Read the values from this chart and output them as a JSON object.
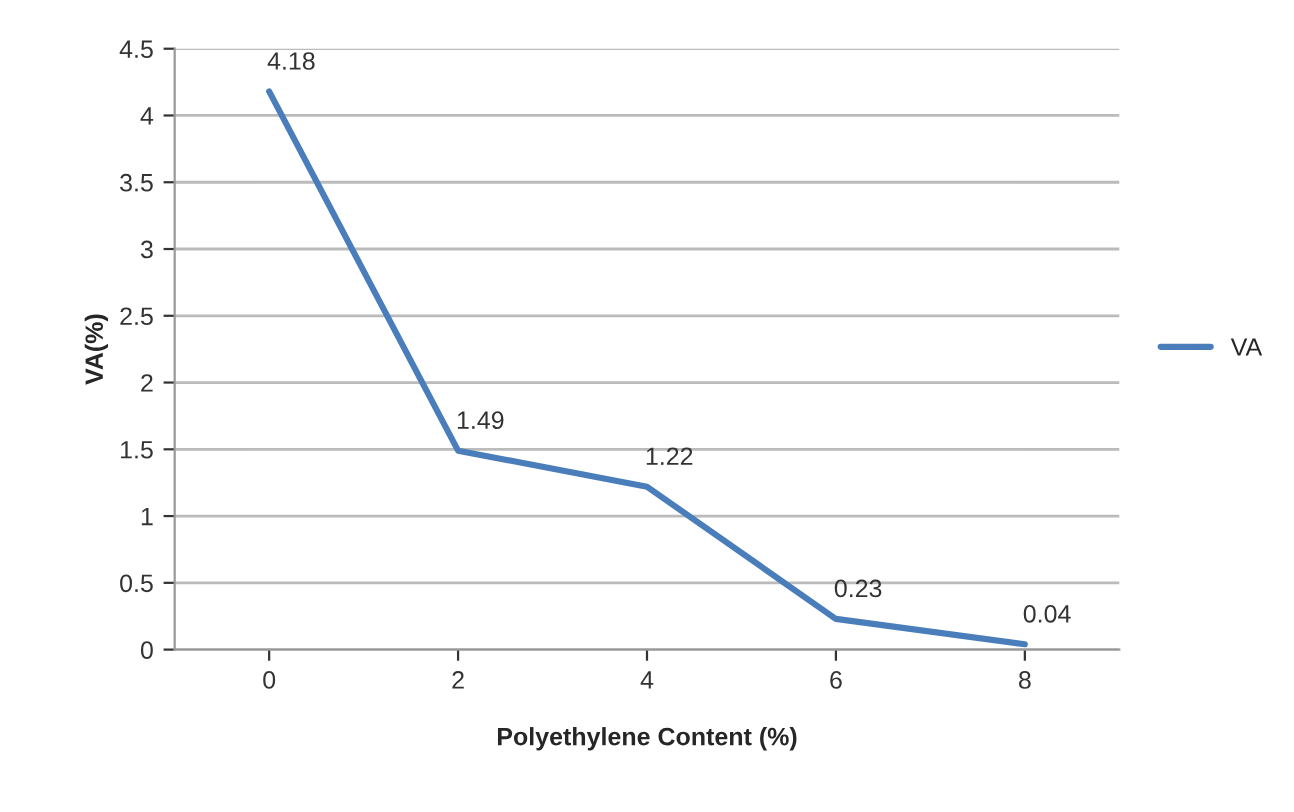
{
  "chart_data": {
    "type": "line",
    "xlabel": "Polyethylene Content (%)",
    "ylabel": "VA(%)",
    "categories": [
      "0",
      "2",
      "4",
      "6",
      "8"
    ],
    "series": [
      {
        "name": "VA",
        "color": "#4a7ebb",
        "values": [
          4.18,
          1.49,
          1.22,
          0.23,
          0.04
        ]
      }
    ],
    "ylim": [
      0,
      4.5
    ],
    "yticks": [
      0,
      0.5,
      1,
      1.5,
      2,
      2.5,
      3,
      3.5,
      4,
      4.5
    ],
    "grid": "y",
    "legend": "right",
    "data_labels": true,
    "marker": "none",
    "line_style": "solid"
  }
}
